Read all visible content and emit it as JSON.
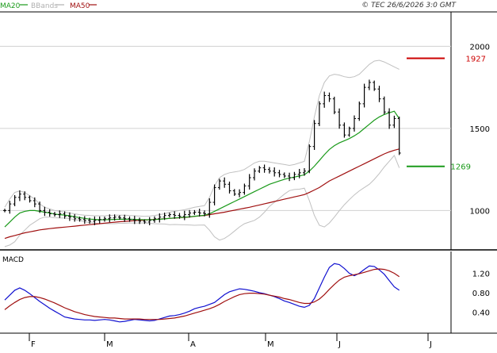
{
  "header": {
    "legend": [
      {
        "label": "MA20",
        "color": "#1a9a1a"
      },
      {
        "label": "BBands",
        "color": "#b0b0b0"
      },
      {
        "label": "MA50",
        "color": "#a01010"
      }
    ],
    "copyright": "© TEC 26/6/2026 3:0 GMT"
  },
  "colors": {
    "candle": "#000000",
    "ma20": "#1a9a1a",
    "ma50": "#a01010",
    "bbands": "#c0c0c0",
    "macd": "#1010d0",
    "signal": "#a01010",
    "resistance": "#cc0000",
    "support": "#1a9a1a",
    "grid": "#d0d0d0"
  },
  "chart_data": [
    {
      "type": "line",
      "title": "",
      "y_axis_side": "right",
      "ylim": [
        770,
        2200
      ],
      "y_ticks": [
        "1000",
        "1500",
        "2000"
      ],
      "x_months": [
        "F",
        "M",
        "A",
        "M",
        "J",
        "J"
      ],
      "levels": [
        {
          "label": "1927",
          "value": 1927,
          "color": "#cc0000"
        },
        {
          "label": "1269",
          "value": 1269,
          "color": "#1a9a1a"
        }
      ],
      "price": [
        1000,
        1040,
        1080,
        1100,
        1080,
        1060,
        1040,
        1000,
        990,
        980,
        975,
        980,
        965,
        960,
        950,
        945,
        940,
        935,
        940,
        945,
        950,
        955,
        960,
        955,
        950,
        945,
        940,
        935,
        930,
        940,
        950,
        960,
        970,
        975,
        970,
        965,
        975,
        985,
        990,
        985,
        980,
        1050,
        1140,
        1180,
        1160,
        1120,
        1100,
        1110,
        1150,
        1200,
        1240,
        1260,
        1250,
        1240,
        1230,
        1220,
        1210,
        1200,
        1220,
        1230,
        1240,
        1390,
        1530,
        1650,
        1700,
        1680,
        1600,
        1520,
        1460,
        1500,
        1560,
        1650,
        1750,
        1780,
        1740,
        1680,
        1600,
        1520,
        1560,
        1350
      ],
      "ma20": [
        900,
        930,
        960,
        985,
        995,
        1000,
        1000,
        995,
        990,
        985,
        978,
        975,
        972,
        968,
        962,
        957,
        952,
        948,
        946,
        944,
        944,
        945,
        946,
        947,
        947,
        947,
        946,
        945,
        944,
        944,
        945,
        947,
        949,
        952,
        955,
        957,
        959,
        962,
        965,
        968,
        971,
        980,
        995,
        1010,
        1025,
        1040,
        1055,
        1070,
        1085,
        1100,
        1115,
        1130,
        1145,
        1160,
        1170,
        1180,
        1190,
        1198,
        1204,
        1210,
        1218,
        1240,
        1270,
        1305,
        1340,
        1372,
        1395,
        1412,
        1425,
        1438,
        1455,
        1475,
        1500,
        1525,
        1550,
        1570,
        1585,
        1595,
        1605,
        1560
      ],
      "ma50": [
        830,
        840,
        848,
        856,
        864,
        870,
        876,
        882,
        886,
        890,
        893,
        896,
        899,
        902,
        905,
        908,
        911,
        914,
        917,
        920,
        923,
        926,
        929,
        932,
        934,
        936,
        938,
        940,
        942,
        944,
        946,
        948,
        950,
        952,
        954,
        956,
        958,
        961,
        964,
        967,
        970,
        975,
        980,
        985,
        990,
        996,
        1002,
        1008,
        1014,
        1020,
        1027,
        1034,
        1041,
        1048,
        1055,
        1062,
        1069,
        1076,
        1083,
        1090,
        1097,
        1110,
        1125,
        1140,
        1160,
        1180,
        1195,
        1210,
        1225,
        1240,
        1255,
        1270,
        1285,
        1300,
        1315,
        1330,
        1345,
        1357,
        1367,
        1375
      ],
      "bb_upper": [
        1020,
        1070,
        1110,
        1120,
        1110,
        1090,
        1070,
        1040,
        1020,
        1010,
        1000,
        995,
        990,
        985,
        980,
        975,
        972,
        970,
        968,
        968,
        968,
        970,
        972,
        972,
        972,
        970,
        968,
        966,
        964,
        966,
        970,
        975,
        980,
        990,
        995,
        1000,
        1005,
        1012,
        1020,
        1025,
        1030,
        1080,
        1150,
        1200,
        1220,
        1230,
        1235,
        1240,
        1250,
        1270,
        1290,
        1300,
        1300,
        1295,
        1290,
        1285,
        1280,
        1275,
        1280,
        1290,
        1300,
        1420,
        1570,
        1700,
        1780,
        1820,
        1830,
        1825,
        1815,
        1810,
        1815,
        1830,
        1860,
        1890,
        1910,
        1915,
        1905,
        1890,
        1875,
        1860
      ],
      "bb_lower": [
        780,
        790,
        810,
        850,
        880,
        910,
        930,
        950,
        960,
        960,
        956,
        955,
        954,
        951,
        944,
        939,
        932,
        926,
        924,
        920,
        920,
        920,
        920,
        922,
        922,
        924,
        924,
        924,
        924,
        922,
        920,
        919,
        918,
        914,
        915,
        914,
        913,
        912,
        910,
        911,
        912,
        880,
        840,
        820,
        830,
        850,
        875,
        900,
        920,
        930,
        940,
        960,
        990,
        1025,
        1050,
        1075,
        1100,
        1121,
        1128,
        1130,
        1136,
        1060,
        970,
        910,
        900,
        924,
        960,
        999,
        1035,
        1066,
        1095,
        1120,
        1140,
        1160,
        1190,
        1225,
        1265,
        1300,
        1335,
        1260
      ]
    },
    {
      "type": "line",
      "title": "MACD",
      "y_axis_side": "right",
      "ylim": [
        0,
        1.6
      ],
      "y_ticks": [
        "0.40",
        "0.80",
        "1.20"
      ],
      "series": [
        {
          "name": "MACD",
          "values": [
            0.65,
            0.75,
            0.85,
            0.9,
            0.85,
            0.78,
            0.7,
            0.62,
            0.55,
            0.48,
            0.42,
            0.36,
            0.3,
            0.28,
            0.26,
            0.25,
            0.24,
            0.24,
            0.23,
            0.24,
            0.25,
            0.24,
            0.22,
            0.2,
            0.21,
            0.23,
            0.25,
            0.24,
            0.23,
            0.22,
            0.23,
            0.26,
            0.29,
            0.32,
            0.33,
            0.35,
            0.38,
            0.42,
            0.47,
            0.5,
            0.52,
            0.56,
            0.6,
            0.68,
            0.76,
            0.82,
            0.85,
            0.88,
            0.87,
            0.85,
            0.83,
            0.8,
            0.78,
            0.75,
            0.72,
            0.68,
            0.63,
            0.6,
            0.56,
            0.52,
            0.5,
            0.54,
            0.68,
            0.9,
            1.12,
            1.32,
            1.4,
            1.38,
            1.3,
            1.2,
            1.15,
            1.2,
            1.28,
            1.35,
            1.34,
            1.27,
            1.18,
            1.05,
            0.92,
            0.85
          ]
        },
        {
          "name": "Signal",
          "values": [
            0.45,
            0.53,
            0.6,
            0.66,
            0.7,
            0.72,
            0.72,
            0.7,
            0.67,
            0.63,
            0.59,
            0.54,
            0.49,
            0.45,
            0.41,
            0.38,
            0.35,
            0.33,
            0.31,
            0.3,
            0.29,
            0.28,
            0.28,
            0.27,
            0.26,
            0.26,
            0.26,
            0.26,
            0.25,
            0.25,
            0.25,
            0.25,
            0.26,
            0.27,
            0.28,
            0.3,
            0.32,
            0.35,
            0.38,
            0.41,
            0.44,
            0.47,
            0.51,
            0.56,
            0.62,
            0.67,
            0.72,
            0.76,
            0.78,
            0.79,
            0.79,
            0.78,
            0.77,
            0.75,
            0.73,
            0.71,
            0.68,
            0.66,
            0.63,
            0.6,
            0.58,
            0.58,
            0.61,
            0.67,
            0.76,
            0.87,
            0.97,
            1.06,
            1.12,
            1.15,
            1.17,
            1.19,
            1.22,
            1.25,
            1.28,
            1.29,
            1.28,
            1.25,
            1.2,
            1.13
          ]
        }
      ]
    }
  ]
}
